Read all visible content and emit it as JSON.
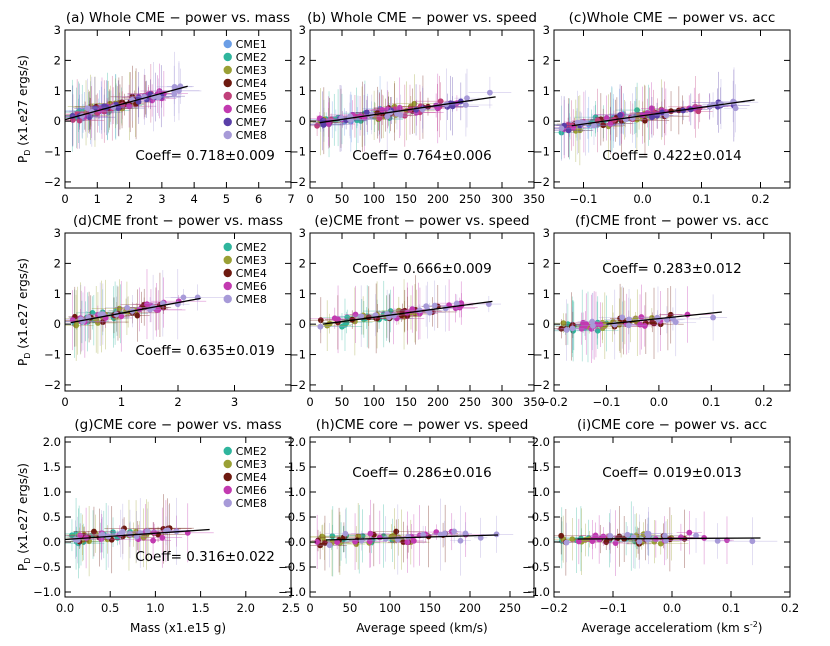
{
  "figure": {
    "ylabel": "P",
    "ylabel_sub": "D",
    "ylabel_unit": " (x1.e27 ergs/s)",
    "xlabels": {
      "mass": "Mass (x1.e15 g)",
      "speed": "Average speed (km/s)",
      "acc": "Average acceleratiom (km s",
      "acc_exp": "-2",
      "acc_close": ")"
    }
  },
  "legends": {
    "row1": [
      "CME1",
      "CME2",
      "CME3",
      "CME4",
      "CME5",
      "CME6",
      "CME7",
      "CME8"
    ],
    "row23": [
      "CME2",
      "CME3",
      "CME4",
      "CME6",
      "CME8"
    ]
  },
  "colors": {
    "CME1": "#6b9ee6",
    "CME2": "#2fb59d",
    "CME3": "#9aa035",
    "CME4": "#6e1a10",
    "CME5": "#c0407a",
    "CME6": "#c23ab0",
    "CME7": "#5a3fa8",
    "CME8": "#a79ad8"
  },
  "chart_data": [
    {
      "id": "a",
      "type": "scatter",
      "title": "(a) Whole CME − power vs. mass",
      "coeff": "Coeff=  0.718±0.009",
      "xlim": [
        0,
        7
      ],
      "ylim": [
        -2.2,
        3
      ],
      "xticks": [
        "0",
        "1",
        "2",
        "3",
        "4",
        "5",
        "6",
        "7"
      ],
      "yticks": [
        "−2",
        "−1",
        "0",
        "1",
        "2",
        "3"
      ],
      "fit": [
        [
          0.0,
          0.05
        ],
        [
          3.8,
          1.15
        ]
      ],
      "legend": "row1",
      "series_list": [
        "CME1",
        "CME2",
        "CME3",
        "CME4",
        "CME5",
        "CME6",
        "CME7",
        "CME8"
      ]
    },
    {
      "id": "b",
      "type": "scatter",
      "title": "(b) Whole CME − power vs. speed",
      "coeff": "Coeff=  0.764±0.006",
      "xlim": [
        0,
        350
      ],
      "ylim": [
        -2.2,
        3
      ],
      "xticks": [
        "0",
        "50",
        "100",
        "150",
        "200",
        "250",
        "300",
        "350"
      ],
      "yticks": [
        "−2",
        "−1",
        "0",
        "1",
        "2",
        "3"
      ],
      "fit": [
        [
          15,
          -0.05
        ],
        [
          290,
          0.8
        ]
      ],
      "series_list": [
        "CME1",
        "CME2",
        "CME3",
        "CME4",
        "CME5",
        "CME6",
        "CME7",
        "CME8"
      ]
    },
    {
      "id": "c",
      "type": "scatter",
      "title": "(c)Whole CME − power vs. acc",
      "coeff": "Coeff=  0.422±0.014",
      "xlim": [
        -0.15,
        0.25
      ],
      "ylim": [
        -2.2,
        3
      ],
      "xticks": [
        "",
        "−0.1",
        "0.0",
        "0.1",
        "0.2",
        ""
      ],
      "xtickvals": [
        -0.15,
        -0.1,
        0.0,
        0.1,
        0.2,
        0.25
      ],
      "yticks": [
        "−2",
        "−1",
        "0",
        "1",
        "2",
        "3"
      ],
      "fit": [
        [
          -0.12,
          -0.15
        ],
        [
          0.19,
          0.7
        ]
      ],
      "series_list": [
        "CME1",
        "CME2",
        "CME3",
        "CME4",
        "CME5",
        "CME6",
        "CME7",
        "CME8"
      ]
    },
    {
      "id": "d",
      "type": "scatter",
      "title": "(d)CME front − power vs. mass",
      "coeff": "Coeff=  0.635±0.019",
      "xlim": [
        0,
        4
      ],
      "ylim": [
        -2.2,
        3
      ],
      "xticks": [
        "0",
        "1",
        "2",
        "3",
        ""
      ],
      "yticks": [
        "−2",
        "−1",
        "0",
        "1",
        "2",
        "3"
      ],
      "fit": [
        [
          0.1,
          0.05
        ],
        [
          2.4,
          0.85
        ]
      ],
      "legend": "row23",
      "series_list": [
        "CME2",
        "CME3",
        "CME4",
        "CME6",
        "CME8"
      ]
    },
    {
      "id": "e",
      "type": "scatter",
      "title": "(e)CME front − power vs. speed",
      "coeff": "Coeff=  0.666±0.009",
      "xlim": [
        0,
        350
      ],
      "ylim": [
        -2.2,
        3
      ],
      "xticks": [
        "0",
        "50",
        "100",
        "150",
        "200",
        "250",
        "300",
        "350"
      ],
      "yticks": [
        "−2",
        "−1",
        "0",
        "1",
        "2",
        "3"
      ],
      "fit": [
        [
          20,
          0.0
        ],
        [
          285,
          0.75
        ]
      ],
      "series_list": [
        "CME2",
        "CME3",
        "CME4",
        "CME6",
        "CME8"
      ]
    },
    {
      "id": "f",
      "type": "scatter",
      "title": "(f)CME front − power vs. acc",
      "coeff": "Coeff=  0.283±0.012",
      "xlim": [
        -0.2,
        0.25
      ],
      "ylim": [
        -2.2,
        3
      ],
      "xticks": [
        "−0.2",
        "−0.1",
        "0.0",
        "0.1",
        "0.2",
        ""
      ],
      "xtickvals": [
        -0.2,
        -0.1,
        0.0,
        0.1,
        0.2,
        0.25
      ],
      "yticks": [
        "−2",
        "−1",
        "0",
        "1",
        "2",
        "3"
      ],
      "fit": [
        [
          -0.1,
          0.0
        ],
        [
          0.12,
          0.4
        ]
      ],
      "series_list": [
        "CME2",
        "CME3",
        "CME4",
        "CME6",
        "CME8"
      ]
    },
    {
      "id": "g",
      "type": "scatter",
      "title": "(g)CME core − power vs. mass",
      "coeff": "Coeff=  0.316±0.022",
      "xlim": [
        0,
        2.5
      ],
      "ylim": [
        -1.1,
        2.1
      ],
      "xticks": [
        "0.0",
        "0.5",
        "1.0",
        "1.5",
        "2.0",
        "2.5"
      ],
      "yticks": [
        "−1.0",
        "−0.5",
        "0.0",
        "0.5",
        "1.0",
        "1.5",
        "2.0"
      ],
      "fit": [
        [
          0.0,
          0.05
        ],
        [
          1.6,
          0.25
        ]
      ],
      "legend": "row23",
      "series_list": [
        "CME2",
        "CME3",
        "CME4",
        "CME6",
        "CME8"
      ]
    },
    {
      "id": "h",
      "type": "scatter",
      "title": "(h)CME core − power vs. speed",
      "coeff": "Coeff=  0.286±0.016",
      "xlim": [
        0,
        280
      ],
      "ylim": [
        -1.1,
        2.1
      ],
      "xticks": [
        "0",
        "50",
        "100",
        "150",
        "200",
        "250",
        ""
      ],
      "xtickvals": [
        0,
        50,
        100,
        150,
        200,
        250,
        280
      ],
      "yticks": [
        "−1.0",
        "−0.5",
        "0.0",
        "0.5",
        "1.0",
        "1.5",
        "2.0"
      ],
      "fit": [
        [
          20,
          0.04
        ],
        [
          235,
          0.14
        ]
      ],
      "series_list": [
        "CME2",
        "CME3",
        "CME4",
        "CME6",
        "CME8"
      ]
    },
    {
      "id": "i",
      "type": "scatter",
      "title": "(i)CME core − power vs. acc",
      "coeff": "Coeff=  0.019±0.013",
      "xlim": [
        -0.2,
        0.2
      ],
      "ylim": [
        -1.1,
        2.1
      ],
      "xticks": [
        "−0.2",
        "−0.1",
        "0.0",
        "0.1",
        "0.2"
      ],
      "yticks": [
        "−1.0",
        "−0.5",
        "0.0",
        "0.5",
        "1.0",
        "1.5",
        "2.0"
      ],
      "fit": [
        [
          -0.16,
          0.06
        ],
        [
          0.15,
          0.08
        ]
      ],
      "series_list": [
        "CME2",
        "CME3",
        "CME4",
        "CME6",
        "CME8"
      ]
    }
  ]
}
